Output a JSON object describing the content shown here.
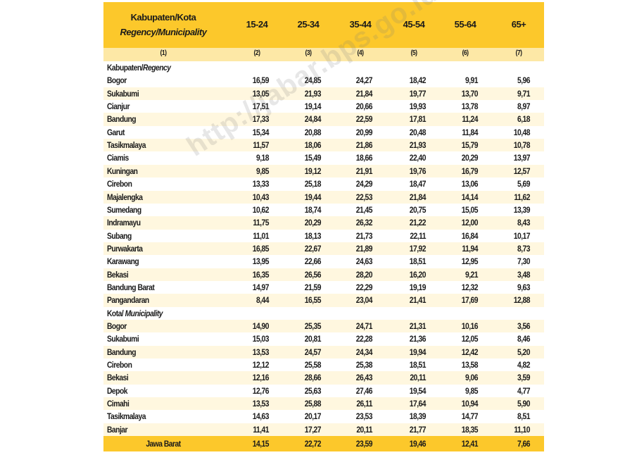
{
  "table": {
    "header": {
      "label": "Kabupaten/Kota",
      "label_en": "Regency/Municipality",
      "columns": [
        "15-24",
        "25-34",
        "35-44",
        "45-54",
        "55-64",
        "65+"
      ]
    },
    "column_numbers": [
      "(1)",
      "(2)",
      "(3)",
      "(4)",
      "(5)",
      "(6)",
      "(7)"
    ],
    "sections": [
      {
        "title": "Kabupaten/",
        "title_en": "Regency",
        "rows": [
          {
            "name": "Bogor",
            "values": [
              "16,59",
              "24,85",
              "24,27",
              "18,42",
              "9,91",
              "5,96"
            ]
          },
          {
            "name": "Sukabumi",
            "values": [
              "13,05",
              "21,93",
              "21,84",
              "19,77",
              "13,70",
              "9,71"
            ]
          },
          {
            "name": "Cianjur",
            "values": [
              "17,51",
              "19,14",
              "20,66",
              "19,93",
              "13,78",
              "8,97"
            ]
          },
          {
            "name": "Bandung",
            "values": [
              "17,33",
              "24,84",
              "22,59",
              "17,81",
              "11,24",
              "6,18"
            ]
          },
          {
            "name": "Garut",
            "values": [
              "15,34",
              "20,88",
              "20,99",
              "20,48",
              "11,84",
              "10,48"
            ]
          },
          {
            "name": "Tasikmalaya",
            "values": [
              "11,57",
              "18,06",
              "21,86",
              "21,93",
              "15,79",
              "10,78"
            ]
          },
          {
            "name": "Ciamis",
            "values": [
              "9,18",
              "15,49",
              "18,66",
              "22,40",
              "20,29",
              "13,97"
            ]
          },
          {
            "name": "Kuningan",
            "values": [
              "9,85",
              "19,12",
              "21,91",
              "19,76",
              "16,79",
              "12,57"
            ]
          },
          {
            "name": "Cirebon",
            "values": [
              "13,33",
              "25,18",
              "24,29",
              "18,47",
              "13,06",
              "5,69"
            ]
          },
          {
            "name": "Majalengka",
            "values": [
              "10,43",
              "19,44",
              "22,53",
              "21,84",
              "14,14",
              "11,62"
            ]
          },
          {
            "name": "Sumedang",
            "values": [
              "10,62",
              "18,74",
              "21,45",
              "20,75",
              "15,05",
              "13,39"
            ]
          },
          {
            "name": "Indramayu",
            "values": [
              "11,75",
              "20,29",
              "26,32",
              "21,22",
              "12,00",
              "8,43"
            ]
          },
          {
            "name": "Subang",
            "values": [
              "11,01",
              "18,13",
              "21,73",
              "22,11",
              "16,84",
              "10,17"
            ]
          },
          {
            "name": "Purwakarta",
            "values": [
              "16,85",
              "22,67",
              "21,89",
              "17,92",
              "11,94",
              "8,73"
            ]
          },
          {
            "name": "Karawang",
            "values": [
              "13,95",
              "22,66",
              "24,63",
              "18,51",
              "12,95",
              "7,30"
            ]
          },
          {
            "name": "Bekasi",
            "values": [
              "16,35",
              "26,56",
              "28,20",
              "16,20",
              "9,21",
              "3,48"
            ]
          },
          {
            "name": "Bandung Barat",
            "values": [
              "14,97",
              "21,59",
              "22,29",
              "19,19",
              "12,32",
              "9,63"
            ]
          },
          {
            "name": "Pangandaran",
            "values": [
              "8,44",
              "16,55",
              "23,04",
              "21,41",
              "17,69",
              "12,88"
            ]
          }
        ]
      },
      {
        "title": "Kota/ ",
        "title_en": "Municipality",
        "rows": [
          {
            "name": "Bogor",
            "values": [
              "14,90",
              "25,35",
              "24,71",
              "21,31",
              "10,16",
              "3,56"
            ]
          },
          {
            "name": "Sukabumi",
            "values": [
              "15,03",
              "20,81",
              "22,28",
              "21,36",
              "12,05",
              "8,46"
            ]
          },
          {
            "name": "Bandung",
            "values": [
              "13,53",
              "24,57",
              "24,34",
              "19,94",
              "12,42",
              "5,20"
            ]
          },
          {
            "name": "Cirebon",
            "values": [
              "12,12",
              "25,58",
              "25,38",
              "18,51",
              "13,58",
              "4,82"
            ]
          },
          {
            "name": "Bekasi",
            "values": [
              "12,16",
              "28,66",
              "26,43",
              "20,11",
              "9,06",
              "3,59"
            ]
          },
          {
            "name": "Depok",
            "values": [
              "12,76",
              "25,63",
              "27,46",
              "19,54",
              "9,85",
              "4,77"
            ]
          },
          {
            "name": "Cimahi",
            "values": [
              "13,53",
              "25,88",
              "26,11",
              "17,64",
              "10,94",
              "5,90"
            ]
          },
          {
            "name": "Tasikmalaya",
            "values": [
              "14,63",
              "20,17",
              "23,53",
              "18,39",
              "14,77",
              "8,51"
            ]
          },
          {
            "name": "Banjar",
            "values": [
              "11,41",
              "17,27",
              "20,11",
              "21,77",
              "18,35",
              "11,10"
            ]
          }
        ]
      }
    ],
    "total": {
      "name": "Jawa Barat",
      "values": [
        "14,15",
        "22,72",
        "23,59",
        "19,46",
        "12,41",
        "7,66"
      ]
    }
  },
  "watermark": "http://jabar.bps.go.id"
}
